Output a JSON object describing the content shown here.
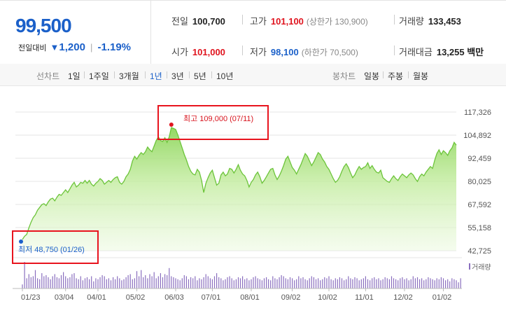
{
  "quote": {
    "price": "99,500",
    "change_label": "전일대비",
    "change_arrow": "▼",
    "change_amount": "1,200",
    "change_pct": "-1.19%"
  },
  "stats": {
    "prev_close_label": "전일",
    "prev_close": "100,700",
    "high_label": "고가",
    "high": "101,100",
    "upper_limit": "(상한가 130,900)",
    "volume_label": "거래량",
    "volume": "133,453",
    "open_label": "시가",
    "open": "101,000",
    "low_label": "저가",
    "low": "98,100",
    "lower_limit": "(하한가 70,500)",
    "amount_label": "거래대금",
    "amount": "13,255 백만"
  },
  "period_tabs": {
    "label": "선차트",
    "items": [
      "1일",
      "1주일",
      "3개월",
      "1년",
      "3년",
      "5년",
      "10년"
    ],
    "active": "1년"
  },
  "candle_tabs": {
    "label": "봉차트",
    "items": [
      "일봉",
      "주봉",
      "월봉"
    ]
  },
  "colors": {
    "accent_blue": "#1b60c9",
    "accent_red": "#e0141e",
    "area_fill": "#8ed65c",
    "line": "#6cc43a"
  },
  "chart_data": {
    "type": "area",
    "y_ticks": [
      "117,326",
      "104,892",
      "92,459",
      "80,025",
      "67,592",
      "55,158",
      "42,725"
    ],
    "ylim": [
      42725,
      117326
    ],
    "x_labels": [
      "01/23",
      "03/04",
      "04/01",
      "05/02",
      "06/03",
      "07/01",
      "08/01",
      "09/02",
      "10/02",
      "11/01",
      "12/02",
      "01/02"
    ],
    "volume_legend": "거래량",
    "max_label": "최고 109,000 (07/11)",
    "min_label": "최저 48,750 (01/26)",
    "max": {
      "date": "07/11",
      "value": 109000
    },
    "min": {
      "date": "01/26",
      "value": 48750
    },
    "series": [
      {
        "values": [
          48750,
          50500,
          51500,
          55000,
          58000,
          60500,
          62000,
          64500,
          66000,
          67500,
          68000,
          67000,
          69000,
          70500,
          71000,
          69500,
          71500,
          73000,
          72500,
          74000,
          75500,
          74000,
          76000,
          78000,
          79500,
          77000,
          78000,
          79500,
          79000,
          80500,
          79000,
          80500,
          78500,
          77500,
          79000,
          80000,
          81500,
          80500,
          78500,
          79500,
          80500,
          79500,
          81000,
          82000,
          82500,
          79500,
          78500,
          80000,
          82500,
          84000,
          86500,
          91000,
          93500,
          92000,
          94000,
          95500,
          94500,
          96000,
          98500,
          97000,
          96000,
          99000,
          102000,
          104000,
          102000,
          101500,
          103500,
          101000,
          104000,
          109000,
          108500,
          108000,
          105000,
          101500,
          98000,
          94500,
          91500,
          88000,
          85500,
          84000,
          83500,
          86500,
          85000,
          80500,
          74000,
          79000,
          82000,
          84500,
          86000,
          82000,
          78000,
          79000,
          83500,
          85000,
          83000,
          84000,
          87000,
          86500,
          84500,
          86500,
          89000,
          86000,
          84000,
          83000,
          80500,
          77000,
          79500,
          81000,
          83500,
          85000,
          82500,
          79000,
          80500,
          82500,
          84500,
          86500,
          87000,
          83500,
          81000,
          83000,
          85500,
          88500,
          92000,
          93500,
          90500,
          87500,
          86000,
          84000,
          86500,
          89000,
          92000,
          95000,
          93500,
          91000,
          88500,
          90500,
          93000,
          95500,
          94500,
          92000,
          90500,
          88000,
          86500,
          84000,
          81500,
          79500,
          80500,
          82500,
          85500,
          88000,
          89500,
          87500,
          84500,
          82000,
          83500,
          86000,
          88000,
          86500,
          87500,
          88000,
          90000,
          87000,
          88500,
          86500,
          85000,
          84500,
          86000,
          82000,
          81000,
          80000,
          79500,
          81500,
          83000,
          81500,
          80500,
          82500,
          84000,
          83000,
          82000,
          83500,
          84500,
          83500,
          81500,
          80000,
          82500,
          84000,
          83000,
          85000,
          86500,
          88000,
          87000,
          91500,
          95000,
          97000,
          94500,
          96500,
          95500,
          94000,
          96500,
          98000,
          101000,
          99500
        ]
      },
      {
        "name": "거래량",
        "values": [
          4,
          26,
          10,
          14,
          11,
          12,
          18,
          10,
          9,
          15,
          12,
          13,
          11,
          9,
          12,
          14,
          11,
          10,
          13,
          16,
          12,
          10,
          11,
          14,
          15,
          10,
          9,
          12,
          8,
          10,
          11,
          9,
          12,
          7,
          10,
          9,
          11,
          13,
          12,
          9,
          10,
          8,
          11,
          9,
          12,
          10,
          8,
          9,
          11,
          13,
          14,
          9,
          10,
          17,
          12,
          18,
          11,
          13,
          10,
          14,
          12,
          16,
          10,
          12,
          15,
          11,
          14,
          13,
          20,
          12,
          11,
          10,
          9,
          8,
          10,
          13,
          12,
          9,
          11,
          10,
          12,
          8,
          10,
          9,
          11,
          14,
          12,
          10,
          9,
          12,
          15,
          11,
          10,
          8,
          9,
          11,
          12,
          10,
          8,
          9,
          11,
          10,
          12,
          9,
          10,
          8,
          9,
          11,
          12,
          10,
          9,
          8,
          10,
          11,
          9,
          8,
          12,
          10,
          9,
          11,
          13,
          12,
          10,
          9,
          11,
          10,
          8,
          9,
          12,
          10,
          11,
          9,
          8,
          10,
          12,
          11,
          9,
          10,
          8,
          9,
          11,
          10,
          12,
          9,
          8,
          10,
          9,
          11,
          10,
          8,
          9,
          12,
          10,
          9,
          11,
          10,
          8,
          9,
          10,
          12,
          9,
          8,
          10,
          11,
          9,
          10,
          8,
          9,
          11,
          10,
          9,
          12,
          10,
          9,
          8,
          10,
          11,
          9,
          10,
          8,
          9,
          12,
          10,
          11,
          9,
          10,
          8,
          9,
          11,
          10,
          9,
          8,
          10,
          9,
          11,
          10,
          8,
          9,
          7,
          10,
          9,
          8,
          6,
          10
        ]
      }
    ]
  }
}
